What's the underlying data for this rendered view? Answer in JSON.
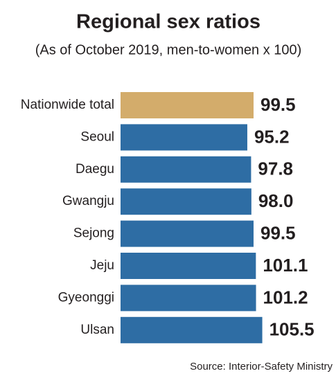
{
  "chart_data": {
    "type": "bar",
    "orientation": "horizontal",
    "title": "Regional sex ratios",
    "subtitle": "(As of October 2019, men-to-women x 100)",
    "source": "Source: Interior-Safety Ministry",
    "categories": [
      "Nationwide total",
      "Seoul",
      "Daegu",
      "Gwangju",
      "Sejong",
      "Jeju",
      "Gyeonggi",
      "Ulsan"
    ],
    "values": [
      99.5,
      95.2,
      97.8,
      98.0,
      99.5,
      101.1,
      101.2,
      105.5
    ],
    "value_labels": [
      "99.5",
      "95.2",
      "97.8",
      "98.0",
      "99.5",
      "101.1",
      "101.2",
      "105.5"
    ],
    "colors": [
      "#d3ac6b",
      "#2e6da4",
      "#2e6da4",
      "#2e6da4",
      "#2e6da4",
      "#2e6da4",
      "#2e6da4",
      "#2e6da4"
    ],
    "xlim": [
      8,
      120
    ]
  }
}
